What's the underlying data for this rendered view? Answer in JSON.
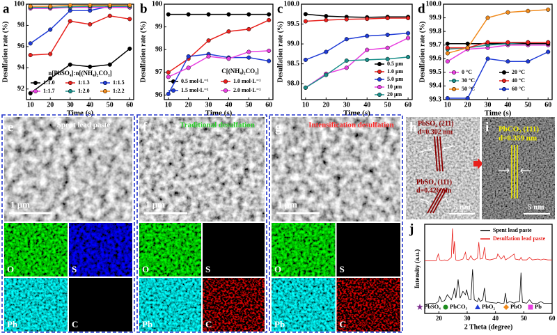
{
  "chart_data": [
    {
      "type": "line",
      "panel": "a",
      "xlabel": "Time (s)",
      "ylabel": "Desulfation rate (%)",
      "legend_title": "n[PbSO₄]:n[(NH₄)₂CO₃]",
      "x": [
        10,
        20,
        30,
        40,
        50,
        60
      ],
      "xlim": [
        8,
        62
      ],
      "xticks": [
        10,
        20,
        30,
        40,
        50,
        60
      ],
      "ylim": [
        91,
        100
      ],
      "yticks": [
        92,
        94,
        96,
        98,
        100
      ],
      "series": [
        {
          "name": "1:1.0",
          "color": "#000000",
          "values": [
            91.6,
            93.0,
            94.3,
            94.1,
            94.3,
            95.8
          ]
        },
        {
          "name": "1:1.3",
          "color": "#e8201c",
          "values": [
            95.2,
            95.3,
            98.4,
            98.1,
            98.9,
            98.6
          ]
        },
        {
          "name": "1:1.5",
          "color": "#1f3bd6",
          "values": [
            96.3,
            97.6,
            99.4,
            99.4,
            99.8,
            99.7
          ]
        },
        {
          "name": "1:1.7",
          "color": "#e83fe0",
          "values": [
            99.6,
            99.6,
            99.7,
            99.7,
            99.7,
            99.7
          ]
        },
        {
          "name": "1:2.0",
          "color": "#1a8f8a",
          "values": [
            99.7,
            99.7,
            99.75,
            99.8,
            99.8,
            99.8
          ]
        },
        {
          "name": "1:2.2",
          "color": "#f08a1c",
          "values": [
            99.8,
            99.8,
            99.9,
            99.9,
            99.9,
            99.9
          ]
        }
      ]
    },
    {
      "type": "line",
      "panel": "b",
      "xlabel": "Time (s)",
      "ylabel": "Desulfation rate (%)",
      "legend_title": "C[(NH₄)₂CO₃]",
      "x": [
        10,
        20,
        30,
        40,
        50,
        60
      ],
      "xlim": [
        8,
        62
      ],
      "xticks": [
        10,
        20,
        30,
        40,
        50,
        60
      ],
      "ylim": [
        95.8,
        100
      ],
      "yticks": [
        96,
        97,
        98,
        99,
        100
      ],
      "series": [
        {
          "name": "0.5 mol·L⁻¹",
          "color": "#000000",
          "values": [
            99.55,
            99.55,
            99.55,
            99.55,
            99.55,
            99.55
          ]
        },
        {
          "name": "1.0 mol·L⁻¹",
          "color": "#e8201c",
          "values": [
            97.0,
            97.6,
            98.4,
            98.8,
            98.9,
            99.3
          ]
        },
        {
          "name": "1.5 mol·L⁻¹",
          "color": "#1f3bd6",
          "values": [
            96.05,
            97.7,
            97.8,
            97.65,
            97.65,
            97.5
          ]
        },
        {
          "name": "2.0 mol·L⁻¹",
          "color": "#e83fe0",
          "values": [
            96.8,
            97.2,
            97.7,
            97.6,
            97.9,
            97.95
          ]
        }
      ]
    },
    {
      "type": "line",
      "panel": "c",
      "xlabel": "Time (s)",
      "ylabel": "Desulfation rate (%)",
      "x": [
        10,
        20,
        30,
        40,
        50,
        60
      ],
      "xlim": [
        8,
        62
      ],
      "xticks": [
        10,
        20,
        30,
        40,
        50,
        60
      ],
      "ylim": [
        97.6,
        100
      ],
      "yticks": [
        {
          "value": 98,
          "label": "98.0"
        },
        98.5,
        {
          "value": 99,
          "label": "99.0"
        },
        99.5,
        {
          "value": 100,
          "label": "100.0"
        }
      ],
      "series": [
        {
          "name": "0.5 μm",
          "color": "#000000",
          "values": [
            99.75,
            99.7,
            99.68,
            99.67,
            99.68,
            99.68
          ]
        },
        {
          "name": "1.0 μm",
          "color": "#e8201c",
          "values": [
            99.57,
            99.6,
            99.62,
            99.63,
            99.65,
            99.65
          ]
        },
        {
          "name": "5.0 μm",
          "color": "#1f3bd6",
          "values": [
            98.6,
            98.8,
            99.12,
            99.2,
            99.23,
            99.27
          ]
        },
        {
          "name": "10 μm",
          "color": "#e83fe0",
          "values": [
            97.9,
            98.25,
            98.4,
            98.85,
            98.9,
            99.15
          ]
        },
        {
          "name": "20 μm",
          "color": "#1a8f8a",
          "values": [
            97.9,
            98.22,
            98.58,
            98.6,
            98.62,
            98.67
          ]
        }
      ]
    },
    {
      "type": "line",
      "panel": "d",
      "xlabel": "Time (s)",
      "ylabel": "Desulfation rate (%)",
      "x": [
        10,
        20,
        30,
        40,
        50,
        60
      ],
      "xlim": [
        8,
        62
      ],
      "xticks": [
        10,
        20,
        30,
        40,
        50,
        60
      ],
      "ylim": [
        99.3,
        100
      ],
      "yticks": [
        99.3,
        99.4,
        99.5,
        99.6,
        99.7,
        99.8,
        99.9,
        {
          "value": 100,
          "label": "100.0"
        }
      ],
      "series": [
        {
          "name": "0 °C",
          "color": "#e83fe0",
          "values": [
            99.58,
            99.67,
            99.68,
            99.7,
            99.7,
            99.7
          ]
        },
        {
          "name": "20 °C",
          "color": "#000000",
          "values": [
            99.71,
            99.71,
            99.71,
            99.71,
            99.71,
            99.71
          ]
        },
        {
          "name": "30 °C",
          "color": "#1a8f8a",
          "values": [
            99.67,
            99.68,
            99.7,
            99.71,
            99.72,
            99.72
          ]
        },
        {
          "name": "40 °C",
          "color": "#e8201c",
          "values": [
            99.68,
            99.68,
            99.72,
            99.72,
            99.72,
            99.72
          ]
        },
        {
          "name": "50 °C",
          "color": "#f08a1c",
          "values": [
            99.64,
            99.68,
            99.9,
            99.94,
            99.95,
            99.96
          ]
        },
        {
          "name": "60 °C",
          "color": "#1f3bd6",
          "values": [
            99.31,
            99.31,
            99.6,
            99.58,
            99.58,
            99.65
          ]
        }
      ]
    },
    {
      "type": "line",
      "panel": "j",
      "markers": false,
      "xlabel": "2 Theta (degree)",
      "ylabel": "Intensity (a.u.)",
      "x": [
        15,
        17,
        19,
        19.8,
        20.3,
        21,
        22,
        23,
        24.4,
        24.8,
        25.2,
        25.5,
        26,
        26.8,
        27.5,
        28.5,
        29.4,
        29.8,
        30.5,
        31.3,
        31.9,
        32.5,
        33.6,
        34.1,
        34.6,
        35.5,
        36.1,
        36.6,
        38,
        40.4,
        40.8,
        42,
        43,
        43.5,
        44,
        45,
        46.6,
        47,
        48.5,
        49,
        49.5,
        51,
        52,
        53,
        55,
        56,
        57,
        58.5,
        60
      ],
      "xlim": [
        15,
        60
      ],
      "xticks": [
        20,
        30,
        40,
        50,
        60
      ],
      "ylim": [
        0,
        105
      ],
      "series": [
        {
          "name": "Spent lead paste",
          "color": "#000000",
          "values": [
            10,
            12,
            12,
            14,
            20,
            14,
            15,
            22,
            16,
            20,
            24,
            30,
            18,
            40,
            18,
            26,
            22,
            28,
            17,
            16,
            52,
            16,
            14,
            18,
            14,
            16,
            30,
            14,
            13,
            12,
            13,
            12,
            12,
            24,
            12,
            14,
            12,
            13,
            14,
            48,
            13,
            12,
            16,
            12,
            12,
            14,
            12,
            12,
            12
          ]
        },
        {
          "name": "Desulfation lead paste",
          "color": "#e8201c",
          "values": [
            62,
            62,
            62,
            70,
            63,
            62,
            63,
            62,
            66,
            100,
            70,
            85,
            63,
            62,
            63,
            64,
            72,
            64,
            63,
            68,
            64,
            63,
            65,
            84,
            64,
            65,
            78,
            64,
            63,
            65,
            70,
            64,
            68,
            63,
            64,
            66,
            70,
            64,
            63,
            66,
            63,
            63,
            66,
            63,
            64,
            63,
            64,
            63,
            63
          ]
        }
      ],
      "phase_legend": [
        {
          "name": "PbSO₄",
          "color": "#7b2d8e"
        },
        {
          "name": "PbCO₃",
          "color": "#1e8c1e"
        },
        {
          "name": "PbO₂",
          "color": "#1f3bd6"
        },
        {
          "name": "PbO",
          "color": "#f08a1c"
        },
        {
          "name": "Pb",
          "color": "#e83fe0"
        }
      ]
    }
  ],
  "panels": {
    "e": {
      "label": "e",
      "caption": "Spent lead paste",
      "scale": "1 μm",
      "maps": [
        "O",
        "S",
        "Pb",
        "C"
      ]
    },
    "f": {
      "label": "f",
      "caption": "Traditional desulfation",
      "scale": "1 μm",
      "maps": [
        "O",
        "S",
        "Pb",
        "C"
      ]
    },
    "g": {
      "label": "g",
      "caption": "Intensification desulfation",
      "scale": "1 μm",
      "maps": [
        "O",
        "S",
        "Pb",
        "C"
      ]
    },
    "h": {
      "label": "h",
      "scale": "5 nm",
      "planes": [
        {
          "name": "PbSO₄ (211)",
          "spacing": "d=0.302 nm"
        },
        {
          "name": "PbSO₄ (111)",
          "spacing": "d=0.426 nm"
        }
      ]
    },
    "i": {
      "label": "i",
      "scale": "5 nm",
      "planes": [
        {
          "name": "PbCO₃ (111)",
          "spacing": "d=0.359 nm"
        }
      ]
    }
  }
}
